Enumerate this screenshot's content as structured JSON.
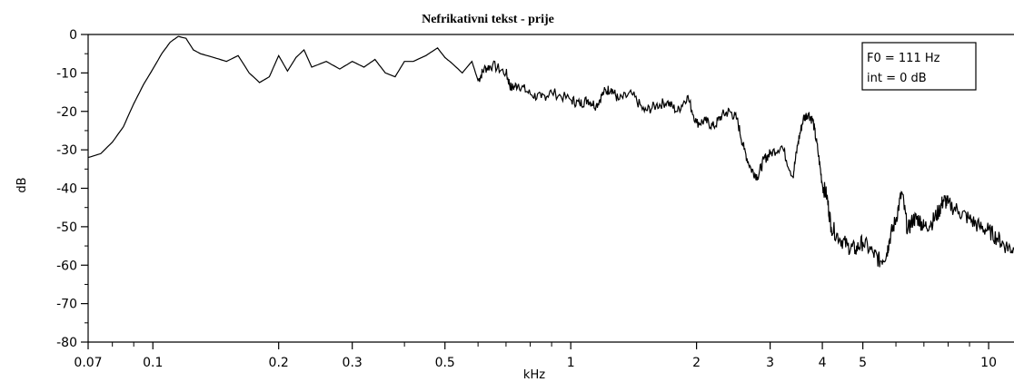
{
  "chart_data": {
    "type": "line",
    "title": "Nefrikativni tekst - prije",
    "xlabel": "kHz",
    "ylabel": "dB",
    "x_scale": "log",
    "xlim": [
      0.07,
      11.5
    ],
    "ylim": [
      -80,
      0
    ],
    "x_ticks": [
      {
        "value": 0.07,
        "label": "0.07"
      },
      {
        "value": 0.1,
        "label": "0.1"
      },
      {
        "value": 0.2,
        "label": "0.2"
      },
      {
        "value": 0.3,
        "label": "0.3"
      },
      {
        "value": 0.5,
        "label": "0.5"
      },
      {
        "value": 1,
        "label": "1"
      },
      {
        "value": 2,
        "label": "2"
      },
      {
        "value": 3,
        "label": "3"
      },
      {
        "value": 4,
        "label": "4"
      },
      {
        "value": 5,
        "label": "5"
      },
      {
        "value": 10,
        "label": "10"
      }
    ],
    "y_ticks": [
      {
        "value": 0,
        "label": "0"
      },
      {
        "value": -10,
        "label": "-10"
      },
      {
        "value": -20,
        "label": "-20"
      },
      {
        "value": -30,
        "label": "-30"
      },
      {
        "value": -40,
        "label": "-40"
      },
      {
        "value": -50,
        "label": "-50"
      },
      {
        "value": -60,
        "label": "-60"
      },
      {
        "value": -70,
        "label": "-70"
      },
      {
        "value": -80,
        "label": "-80"
      }
    ],
    "grid": false,
    "legend": {
      "placement": "top-right",
      "lines": [
        "F0 = 111 Hz",
        "int = 0 dB"
      ]
    },
    "series": [
      {
        "color": "#000000",
        "points": [
          [
            0.07,
            -32
          ],
          [
            0.075,
            -31
          ],
          [
            0.08,
            -28
          ],
          [
            0.085,
            -24
          ],
          [
            0.09,
            -18
          ],
          [
            0.095,
            -13
          ],
          [
            0.1,
            -9
          ],
          [
            0.105,
            -5
          ],
          [
            0.11,
            -2
          ],
          [
            0.115,
            -0.5
          ],
          [
            0.12,
            -1
          ],
          [
            0.125,
            -4
          ],
          [
            0.13,
            -5
          ],
          [
            0.14,
            -6
          ],
          [
            0.15,
            -7
          ],
          [
            0.16,
            -5.5
          ],
          [
            0.17,
            -10
          ],
          [
            0.18,
            -12.5
          ],
          [
            0.19,
            -11
          ],
          [
            0.2,
            -5.5
          ],
          [
            0.21,
            -9.5
          ],
          [
            0.22,
            -6
          ],
          [
            0.23,
            -4
          ],
          [
            0.24,
            -8.5
          ],
          [
            0.26,
            -7
          ],
          [
            0.28,
            -9
          ],
          [
            0.3,
            -7
          ],
          [
            0.32,
            -8.5
          ],
          [
            0.34,
            -6.5
          ],
          [
            0.36,
            -10
          ],
          [
            0.38,
            -11
          ],
          [
            0.4,
            -7
          ],
          [
            0.42,
            -7
          ],
          [
            0.45,
            -5.5
          ],
          [
            0.48,
            -3.5
          ],
          [
            0.5,
            -6
          ],
          [
            0.52,
            -7.5
          ],
          [
            0.55,
            -10
          ],
          [
            0.58,
            -7
          ],
          [
            0.6,
            -12
          ],
          [
            0.62,
            -9
          ],
          [
            0.65,
            -8
          ],
          [
            0.7,
            -10
          ],
          [
            0.72,
            -14
          ],
          [
            0.75,
            -13
          ],
          [
            0.8,
            -15.5
          ],
          [
            0.85,
            -16.5
          ],
          [
            0.9,
            -15
          ],
          [
            1.0,
            -17
          ],
          [
            1.05,
            -18
          ],
          [
            1.1,
            -17
          ],
          [
            1.15,
            -18.5
          ],
          [
            1.2,
            -15
          ],
          [
            1.25,
            -14
          ],
          [
            1.3,
            -17
          ],
          [
            1.4,
            -15.5
          ],
          [
            1.5,
            -20
          ],
          [
            1.6,
            -18.5
          ],
          [
            1.7,
            -17.5
          ],
          [
            1.8,
            -20
          ],
          [
            1.9,
            -16
          ],
          [
            2.0,
            -23
          ],
          [
            2.1,
            -22.5
          ],
          [
            2.2,
            -24
          ],
          [
            2.3,
            -21
          ],
          [
            2.4,
            -20
          ],
          [
            2.5,
            -22
          ],
          [
            2.6,
            -30
          ],
          [
            2.7,
            -35
          ],
          [
            2.8,
            -37
          ],
          [
            2.9,
            -32.5
          ],
          [
            3.0,
            -31
          ],
          [
            3.2,
            -29
          ],
          [
            3.4,
            -37
          ],
          [
            3.5,
            -28
          ],
          [
            3.6,
            -22
          ],
          [
            3.7,
            -20.5
          ],
          [
            3.8,
            -22.5
          ],
          [
            3.9,
            -30
          ],
          [
            4.0,
            -39
          ],
          [
            4.1,
            -42
          ],
          [
            4.2,
            -50
          ],
          [
            4.4,
            -53
          ],
          [
            4.6,
            -55
          ],
          [
            4.8,
            -56
          ],
          [
            5.0,
            -54
          ],
          [
            5.3,
            -57
          ],
          [
            5.5,
            -59
          ],
          [
            5.7,
            -57
          ],
          [
            5.8,
            -53
          ],
          [
            6.0,
            -48
          ],
          [
            6.2,
            -41
          ],
          [
            6.4,
            -51
          ],
          [
            6.6,
            -48
          ],
          [
            6.8,
            -48
          ],
          [
            7.0,
            -50
          ],
          [
            7.3,
            -49
          ],
          [
            7.6,
            -46
          ],
          [
            7.8,
            -43
          ],
          [
            8.0,
            -44
          ],
          [
            8.5,
            -46
          ],
          [
            9.0,
            -48
          ],
          [
            9.5,
            -50
          ],
          [
            10.0,
            -51
          ],
          [
            10.5,
            -53
          ],
          [
            11.0,
            -55
          ],
          [
            11.5,
            -56
          ]
        ]
      }
    ]
  }
}
